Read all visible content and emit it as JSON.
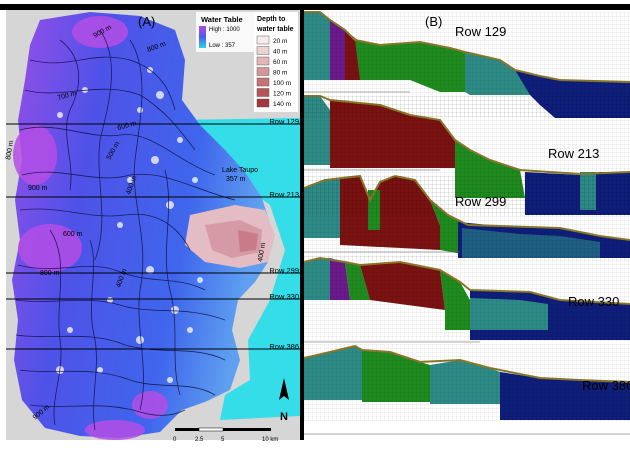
{
  "panel_a": {
    "label": "(A)",
    "legend_water_table": {
      "title": "Water Table",
      "high_label": "High : 1000",
      "low_label": "Low : 357",
      "high_color": "#b24ae0",
      "low_color": "#2bd6e8"
    },
    "legend_depth": {
      "title_line1": "Depth to",
      "title_line2": "water table",
      "classes": [
        {
          "label": "20 m",
          "color": "#f6ecec"
        },
        {
          "label": "40 m",
          "color": "#eed3d3"
        },
        {
          "label": "60 m",
          "color": "#e2b5b6"
        },
        {
          "label": "80 m",
          "color": "#d69597"
        },
        {
          "label": "100 m",
          "color": "#c77478"
        },
        {
          "label": "120 m",
          "color": "#b65458"
        },
        {
          "label": "140 m",
          "color": "#a5383e"
        }
      ]
    },
    "lake_name": "Lake Taupo",
    "lake_level": "357 m",
    "rows": [
      "Row 129",
      "Row 213",
      "Row 299",
      "Row 330",
      "Row 386"
    ],
    "contour_labels": [
      "900 m",
      "800 m",
      "700 m",
      "600 m",
      "500 m",
      "400 m",
      "900 m",
      "800 m",
      "600 m",
      "800 m",
      "400 m",
      "900 m",
      "400 m"
    ],
    "scale_ticks": [
      "0",
      "2.5",
      "5",
      "10 km"
    ],
    "north_label": "N",
    "colors": {
      "lake": "#35dde8",
      "contour": "#0d0d3a"
    }
  },
  "panel_b": {
    "label": "(B)",
    "rows": [
      "Row 129",
      "Row 213",
      "Row 299",
      "Row 330",
      "Row 386"
    ],
    "unit_colors": {
      "teal": "#2d8a86",
      "green": "#1f8a1f",
      "red": "#7a1212",
      "navy": "#0e1e7a",
      "purple": "#6a1a8a",
      "topsoil": "#8c7a2a"
    }
  }
}
